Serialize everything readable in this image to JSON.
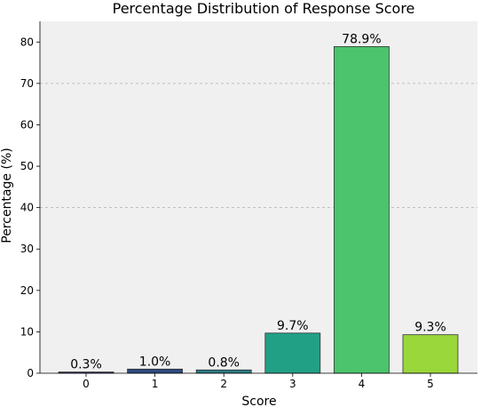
{
  "chart_data": {
    "type": "bar",
    "title": "Percentage Distribution of Response Score",
    "xlabel": "Score",
    "ylabel": "Percentage (%)",
    "categories": [
      "0",
      "1",
      "2",
      "3",
      "4",
      "5"
    ],
    "values": [
      0.3,
      1.0,
      0.8,
      9.7,
      78.9,
      9.3
    ],
    "value_labels": [
      "0.3%",
      "1.0%",
      "0.8%",
      "9.7%",
      "78.9%",
      "9.3%"
    ],
    "bar_colors": [
      "#3f2f6e",
      "#2e4a7e",
      "#2a7b86",
      "#22a085",
      "#4bc46d",
      "#9ad73a"
    ],
    "ylim": [
      0,
      85
    ],
    "yticks": [
      0,
      10,
      20,
      30,
      40,
      50,
      60,
      70,
      80
    ],
    "gridlines_at": [
      40,
      70
    ],
    "grid": true,
    "legend": false,
    "plot_background": "#f0f0f0"
  }
}
